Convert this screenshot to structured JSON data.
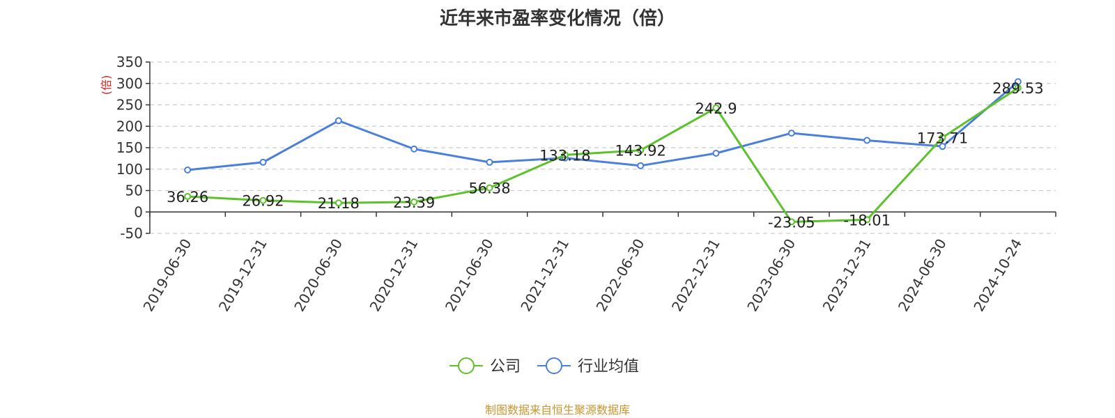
{
  "chart_data": {
    "type": "line",
    "title": "近年来市盈率变化情况（倍）",
    "ylabel": "(倍)",
    "ylim": [
      -50,
      350
    ],
    "yticks": [
      -50,
      0,
      50,
      100,
      150,
      200,
      250,
      300,
      350
    ],
    "categories": [
      "2019-06-30",
      "2019-12-31",
      "2020-06-30",
      "2020-12-31",
      "2021-06-30",
      "2021-12-31",
      "2022-06-30",
      "2022-12-31",
      "2023-06-30",
      "2023-12-31",
      "2024-06-30",
      "2024-10-24"
    ],
    "grid": true,
    "legend_position": "bottom",
    "series": [
      {
        "name": "公司",
        "color": "#5cc22b",
        "values": [
          36.26,
          26.92,
          21.18,
          23.39,
          56.38,
          133.18,
          143.92,
          242.9,
          -23.05,
          -18.01,
          173.71,
          289.53
        ],
        "labels": [
          "36.26",
          "26.92",
          "21.18",
          "23.39",
          "56.38",
          "133.18",
          "143.92",
          "242.9",
          "-23.05",
          "-18.01",
          "173.71",
          "289.53"
        ]
      },
      {
        "name": "行业均值",
        "color": "#4a7fdc",
        "values": [
          98,
          116,
          213,
          147,
          116,
          126,
          108,
          137,
          184,
          167,
          153,
          304
        ]
      }
    ]
  },
  "source": {
    "text": "制图数据来自恒生聚源数据库",
    "color": "#c8962e"
  },
  "ylabel_color": "#e0201c"
}
